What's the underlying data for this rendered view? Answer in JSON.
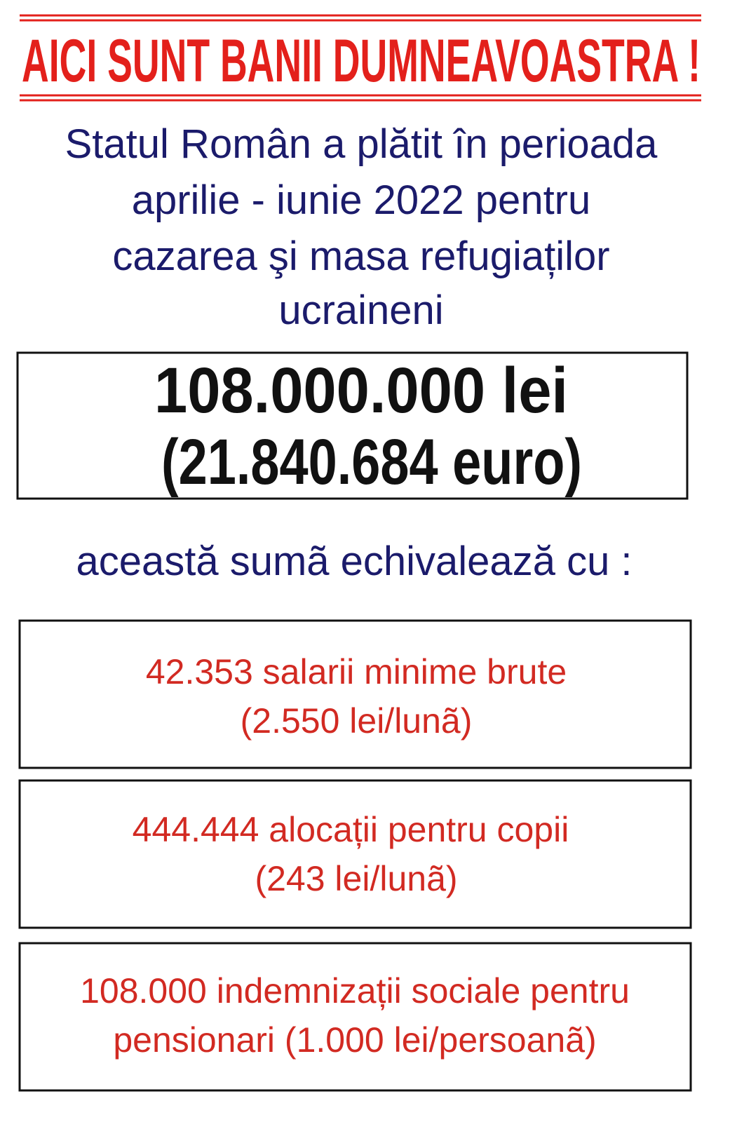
{
  "header": {
    "title": "AICI SUNT BANII DUMNEAVOASTRA !"
  },
  "intro": {
    "lines": [
      "Statul Român a plătit în perioada",
      "aprilie - iunie 2022 pentru",
      "cazarea şi masa refugiaților",
      "ucraineni"
    ]
  },
  "total": {
    "lines": [
      "108.000.000 lei",
      "(21.840.684 euro)"
    ]
  },
  "subtitle": "această sumã echivalează cu :",
  "items": [
    {
      "lines": [
        "42.353 salarii minime brute",
        "(2.550 lei/lunã)"
      ]
    },
    {
      "lines": [
        "444.444 alocații pentru copii",
        "(243 lei/lunã)"
      ]
    },
    {
      "lines": [
        "108.000 indemnizații sociale pentru",
        "pensionari (1.000 lei/persoanã)"
      ]
    }
  ]
}
